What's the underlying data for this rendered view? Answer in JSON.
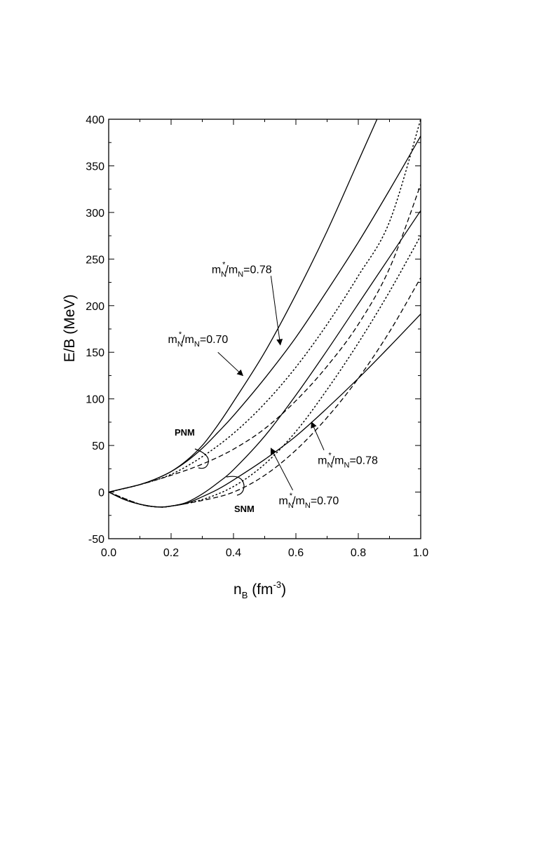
{
  "chart_data": {
    "type": "line",
    "ylabel": "E/B  (MeV)",
    "xlabel": {
      "main": "n",
      "sub": "B",
      "unit_prefix": "  (fm",
      "unit_sup": "-3",
      "unit_suffix": ")"
    },
    "xlim": [
      0.0,
      1.0
    ],
    "ylim": [
      -50,
      400
    ],
    "xticks": [
      0.0,
      0.2,
      0.4,
      0.6,
      0.8,
      1.0
    ],
    "xtick_labels": [
      "0.0",
      "0.2",
      "0.4",
      "0.6",
      "0.8",
      "1.0"
    ],
    "yticks": [
      -50,
      0,
      50,
      100,
      150,
      200,
      250,
      300,
      350,
      400
    ],
    "ytick_labels": [
      "-50",
      "0",
      "50",
      "100",
      "150",
      "200",
      "250",
      "300",
      "350",
      "400"
    ],
    "grid": false,
    "series": [
      {
        "style": "solid",
        "x": [
          0,
          0.05,
          0.1,
          0.15,
          0.2,
          0.25,
          0.3,
          0.35,
          0.4,
          0.5,
          0.6,
          0.7,
          0.8,
          0.86
        ],
        "y": [
          0,
          4,
          8,
          14,
          22,
          34,
          50,
          72,
          97,
          150,
          212,
          280,
          355,
          400
        ]
      },
      {
        "style": "solid",
        "x": [
          0,
          0.05,
          0.1,
          0.15,
          0.2,
          0.25,
          0.3,
          0.35,
          0.4,
          0.5,
          0.6,
          0.7,
          0.8,
          0.9,
          1.0
        ],
        "y": [
          0,
          4,
          8,
          14,
          22,
          33,
          47,
          64,
          82,
          122,
          166,
          216,
          268,
          324,
          382
        ]
      },
      {
        "style": "dotted",
        "x": [
          0,
          0.1,
          0.2,
          0.3,
          0.4,
          0.5,
          0.6,
          0.7,
          0.8,
          0.9,
          1.0
        ],
        "y": [
          0,
          8,
          19,
          38,
          63,
          95,
          134,
          180,
          232,
          290,
          400
        ]
      },
      {
        "style": "dashed",
        "x": [
          0,
          0.1,
          0.2,
          0.3,
          0.4,
          0.5,
          0.6,
          0.7,
          0.8,
          0.9,
          1.0
        ],
        "y": [
          0,
          8,
          18,
          30,
          46,
          68,
          98,
          135,
          180,
          240,
          330
        ]
      },
      {
        "style": "solid",
        "x": [
          0,
          0.05,
          0.1,
          0.16,
          0.2,
          0.25,
          0.3,
          0.35,
          0.4,
          0.5,
          0.6,
          0.7,
          0.8,
          0.9,
          1.0
        ],
        "y": [
          0,
          -8,
          -13,
          -16,
          -15,
          -11,
          -2,
          10,
          24,
          60,
          104,
          152,
          202,
          252,
          302
        ]
      },
      {
        "style": "solid",
        "x": [
          0,
          0.05,
          0.1,
          0.16,
          0.2,
          0.25,
          0.3,
          0.35,
          0.4,
          0.5,
          0.6,
          0.7,
          0.8,
          0.9,
          1.0
        ],
        "y": [
          0,
          -8,
          -13,
          -16,
          -15,
          -12,
          -5,
          3,
          13,
          35,
          60,
          90,
          122,
          156,
          191
        ]
      },
      {
        "style": "dotted",
        "x": [
          0,
          0.1,
          0.16,
          0.2,
          0.3,
          0.4,
          0.5,
          0.6,
          0.7,
          0.8,
          0.9,
          1.0
        ],
        "y": [
          0,
          -13,
          -16,
          -15,
          -8,
          6,
          30,
          65,
          110,
          160,
          215,
          275
        ]
      },
      {
        "style": "dashed",
        "x": [
          0,
          0.1,
          0.16,
          0.2,
          0.3,
          0.4,
          0.5,
          0.6,
          0.7,
          0.8,
          0.9,
          1.0
        ],
        "y": [
          0,
          -13,
          -16,
          -15,
          -9,
          0,
          18,
          45,
          80,
          122,
          172,
          230
        ]
      }
    ],
    "annotations": [
      {
        "id": "pnm-078",
        "parts": [
          [
            "m",
            "N",
            "*",
            "/m",
            "N",
            "",
            "=0.78"
          ]
        ],
        "text": "m*N/mN=0.78",
        "label_at": [
          0.33,
          235
        ],
        "arrow_from": [
          0.52,
          232
        ],
        "arrow_to": [
          0.55,
          158
        ]
      },
      {
        "id": "pnm-070",
        "parts": [
          [
            "m",
            "N",
            "*",
            "/m",
            "N",
            "",
            "=0.70"
          ]
        ],
        "text": "m*N/mN=0.70",
        "label_at": [
          0.19,
          160
        ],
        "arrow_from": [
          0.35,
          150
        ],
        "arrow_to": [
          0.43,
          125
        ]
      },
      {
        "id": "snm-078",
        "parts": [
          [
            "m",
            "N",
            "*",
            "/m",
            "N",
            "",
            "=0.78"
          ]
        ],
        "text": "m*N/mN=0.78",
        "label_at": [
          0.67,
          30
        ],
        "arrow_from": [
          0.69,
          45
        ],
        "arrow_to": [
          0.65,
          75
        ]
      },
      {
        "id": "snm-070",
        "parts": [
          [
            "m",
            "N",
            "*",
            "/m",
            "N",
            "",
            "=0.70"
          ]
        ],
        "text": "m*N/mN=0.70",
        "label_at": [
          0.545,
          -13
        ],
        "arrow_from": [
          0.59,
          2
        ],
        "arrow_to": [
          0.52,
          47
        ]
      },
      {
        "id": "pnm",
        "text": "PNM"
      },
      {
        "id": "snm",
        "text": "SNM"
      }
    ]
  }
}
